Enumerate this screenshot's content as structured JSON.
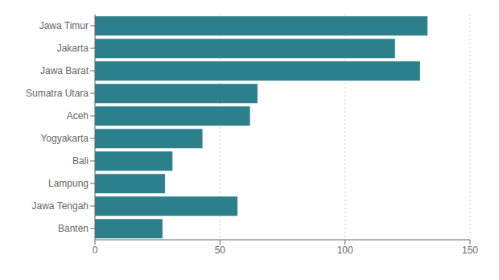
{
  "chart_data": {
    "type": "bar",
    "orientation": "horizontal",
    "categories": [
      "Banten",
      "Jawa Tengah",
      "Lampung",
      "Bali",
      "Yogyakarta",
      "Aceh",
      "Sumatra Utara",
      "Jawa Barat",
      "Jakarta",
      "Jawa Timur"
    ],
    "values": [
      27,
      57,
      28,
      31,
      43,
      62,
      65,
      130,
      120,
      133
    ],
    "color": "#2d7f8c",
    "xlim": [
      0,
      150
    ],
    "xticks": [
      0,
      50,
      100,
      150
    ],
    "grid": true
  }
}
